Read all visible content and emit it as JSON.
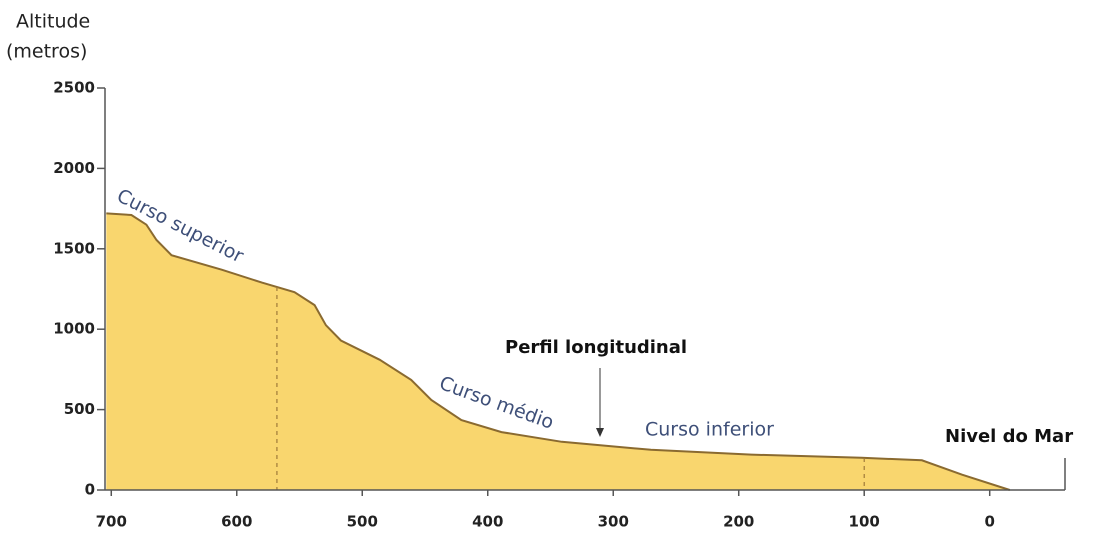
{
  "chart_data": {
    "type": "area",
    "ylabel": [
      "Altitude",
      "(metros)"
    ],
    "x": [
      704,
      684,
      672,
      664,
      652,
      612,
      580,
      554,
      538,
      529,
      517,
      486,
      461,
      445,
      421,
      389,
      341,
      270,
      190,
      102,
      54,
      22,
      -16
    ],
    "values": [
      1720,
      1710,
      1650,
      1555,
      1460,
      1370,
      1290,
      1230,
      1150,
      1025,
      930,
      810,
      685,
      560,
      435,
      360,
      300,
      250,
      220,
      200,
      185,
      95,
      0
    ],
    "color": "#f9d66e",
    "line_color": "#8a6a30",
    "xlim": [
      705,
      -60
    ],
    "xticks": [
      700,
      600,
      500,
      400,
      300,
      200,
      100,
      0
    ],
    "ylim": [
      0,
      2500
    ],
    "yticks": [
      0,
      500,
      1000,
      1500,
      2000,
      2500
    ],
    "section_boundaries": [
      568,
      100
    ],
    "annotations": {
      "upper": "Curso superior",
      "middle": "Curso médio",
      "lower": "Curso inferior",
      "profile": "Perfil longitudinal",
      "sea": "Nivel do Mar"
    }
  }
}
